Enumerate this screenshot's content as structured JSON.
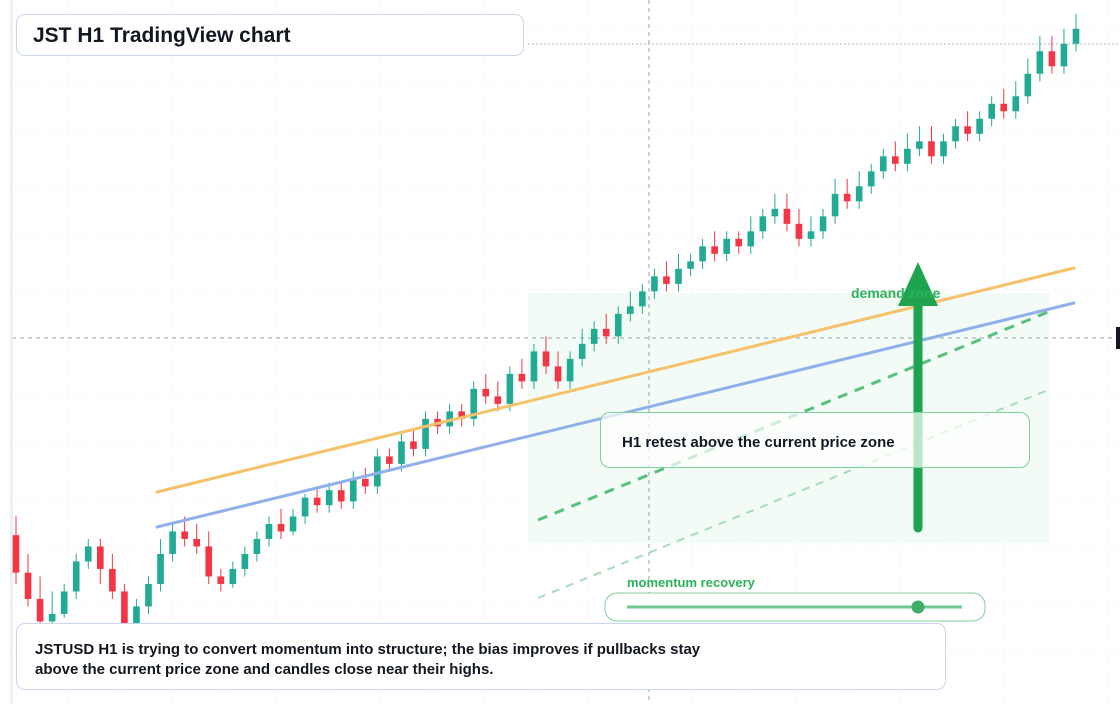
{
  "header": {
    "title": "JST H1 TradingView chart"
  },
  "annotations": {
    "demand_zone_label": "demand zone",
    "retest_note": "H1 retest above the current price zone",
    "momentum_label": "momentum recovery",
    "summary_line1": "JSTUSD H1 is trying to convert momentum into structure; the bias improves if pullbacks stay",
    "summary_line2": "above the current price zone and candles close near their highs."
  },
  "colors": {
    "up": "#22ab94",
    "down": "#f23645",
    "orange_line": "#f5c26b",
    "blue_line": "#8fb0ea",
    "green": "#1fa34f",
    "grid": "#eef1f6"
  },
  "chart_data": {
    "type": "candlestick",
    "symbol": "JSTUSD",
    "timeframe": "H1",
    "candles": [
      [
        85,
        75,
        90,
        72
      ],
      [
        75,
        68,
        80,
        66
      ],
      [
        68,
        62,
        74,
        61
      ],
      [
        62,
        64,
        70,
        60
      ],
      [
        64,
        70,
        72,
        63
      ],
      [
        70,
        78,
        80,
        68
      ],
      [
        78,
        82,
        84,
        76
      ],
      [
        82,
        76,
        84,
        72
      ],
      [
        76,
        70,
        80,
        68
      ],
      [
        70,
        60,
        72,
        58
      ],
      [
        60,
        66,
        68,
        59
      ],
      [
        66,
        72,
        74,
        64
      ],
      [
        72,
        80,
        84,
        70
      ],
      [
        80,
        86,
        88,
        78
      ],
      [
        86,
        84,
        90,
        82
      ],
      [
        84,
        82,
        88,
        80
      ],
      [
        82,
        74,
        86,
        72
      ],
      [
        74,
        72,
        76,
        70
      ],
      [
        72,
        76,
        78,
        71
      ],
      [
        76,
        80,
        82,
        74
      ],
      [
        80,
        84,
        86,
        78
      ],
      [
        84,
        88,
        90,
        82
      ],
      [
        88,
        86,
        92,
        84
      ],
      [
        86,
        90,
        92,
        85
      ],
      [
        90,
        95,
        96,
        88
      ],
      [
        95,
        93,
        98,
        91
      ],
      [
        93,
        97,
        99,
        91
      ],
      [
        97,
        94,
        99,
        92
      ],
      [
        94,
        100,
        102,
        92
      ],
      [
        100,
        98,
        103,
        96
      ],
      [
        98,
        106,
        108,
        96
      ],
      [
        106,
        104,
        108,
        102
      ],
      [
        104,
        110,
        112,
        102
      ],
      [
        110,
        108,
        113,
        106
      ],
      [
        108,
        116,
        118,
        106
      ],
      [
        116,
        114,
        118,
        112
      ],
      [
        114,
        118,
        120,
        112
      ],
      [
        118,
        116,
        120,
        114
      ],
      [
        116,
        124,
        126,
        114
      ],
      [
        124,
        122,
        128,
        120
      ],
      [
        122,
        120,
        126,
        118
      ],
      [
        120,
        128,
        130,
        118
      ],
      [
        128,
        126,
        132,
        124
      ],
      [
        126,
        134,
        136,
        124
      ],
      [
        134,
        130,
        138,
        128
      ],
      [
        130,
        126,
        134,
        124
      ],
      [
        126,
        132,
        134,
        124
      ],
      [
        132,
        136,
        140,
        130
      ],
      [
        136,
        140,
        142,
        134
      ],
      [
        140,
        138,
        144,
        136
      ],
      [
        138,
        144,
        146,
        136
      ],
      [
        144,
        146,
        150,
        142
      ],
      [
        146,
        150,
        152,
        144
      ],
      [
        150,
        154,
        156,
        148
      ],
      [
        154,
        152,
        158,
        150
      ],
      [
        152,
        156,
        160,
        150
      ],
      [
        156,
        158,
        160,
        154
      ],
      [
        158,
        162,
        164,
        156
      ],
      [
        162,
        160,
        166,
        158
      ],
      [
        160,
        164,
        166,
        158
      ],
      [
        164,
        162,
        166,
        160
      ],
      [
        162,
        166,
        170,
        160
      ],
      [
        166,
        170,
        172,
        164
      ],
      [
        170,
        172,
        176,
        168
      ],
      [
        172,
        168,
        176,
        166
      ],
      [
        168,
        164,
        172,
        162
      ],
      [
        164,
        166,
        170,
        162
      ],
      [
        166,
        170,
        172,
        164
      ],
      [
        170,
        176,
        180,
        168
      ],
      [
        176,
        174,
        180,
        172
      ],
      [
        174,
        178,
        182,
        172
      ],
      [
        178,
        182,
        184,
        176
      ],
      [
        182,
        186,
        188,
        180
      ],
      [
        186,
        184,
        190,
        182
      ],
      [
        184,
        188,
        192,
        182
      ],
      [
        188,
        190,
        194,
        186
      ],
      [
        190,
        186,
        194,
        184
      ],
      [
        186,
        190,
        192,
        184
      ],
      [
        190,
        194,
        196,
        188
      ],
      [
        194,
        192,
        198,
        190
      ],
      [
        192,
        196,
        198,
        190
      ],
      [
        196,
        200,
        202,
        194
      ],
      [
        200,
        198,
        204,
        196
      ],
      [
        198,
        202,
        206,
        196
      ],
      [
        202,
        208,
        212,
        200
      ],
      [
        208,
        214,
        218,
        206
      ],
      [
        214,
        210,
        218,
        208
      ],
      [
        210,
        216,
        220,
        208
      ],
      [
        216,
        220,
        224,
        214
      ]
    ]
  }
}
